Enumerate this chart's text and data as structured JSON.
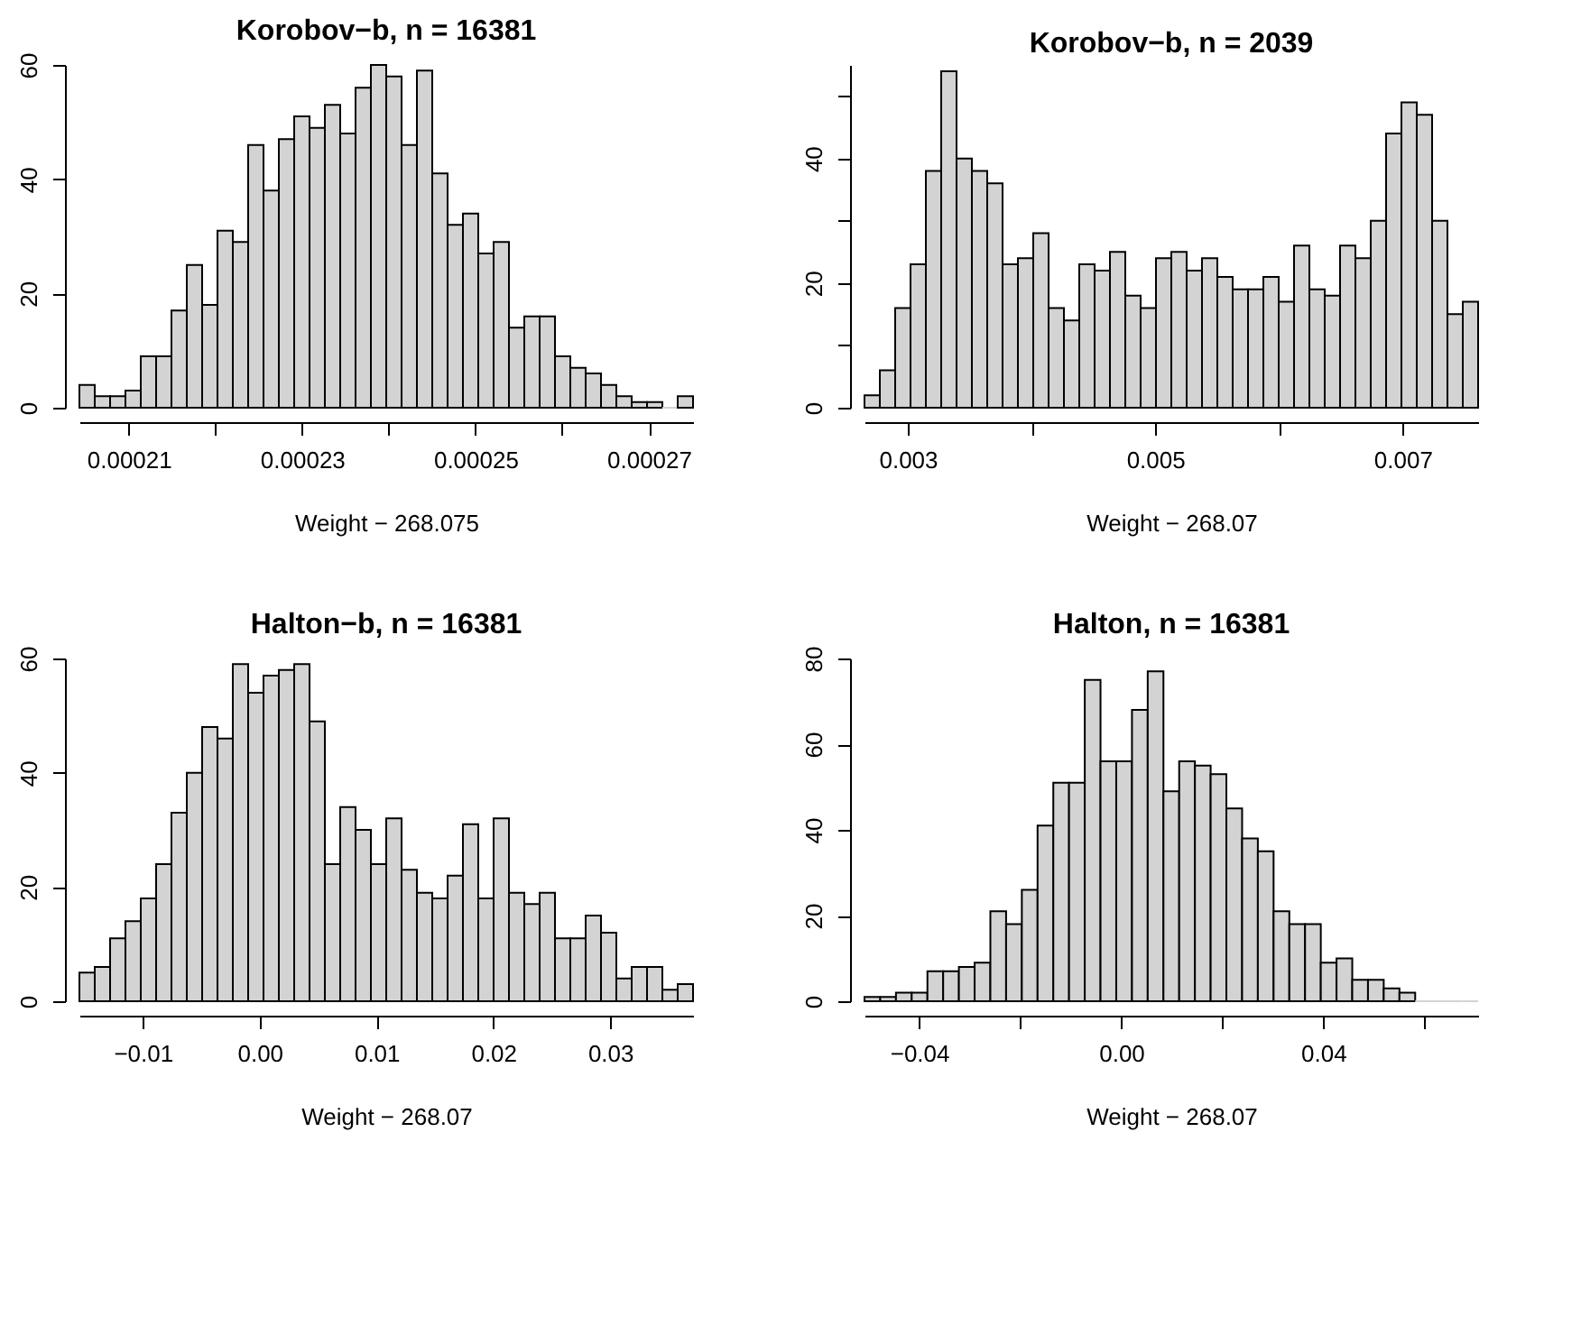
{
  "chart_data": [
    {
      "type": "histogram",
      "title": "Korobov−b, n =  16381",
      "xlabel": "Weight − 268.075",
      "color": "#d3d3d3",
      "grid": false,
      "bins": [
        0.0002043,
        0.00020607,
        0.00020784,
        0.00020961,
        0.00021138,
        0.00021315,
        0.00021492,
        0.00021669,
        0.00021846,
        0.00022023,
        0.000222,
        0.00022377,
        0.00022554,
        0.00022731,
        0.00022908,
        0.00023085,
        0.00023262,
        0.00023439,
        0.00023616,
        0.00023793,
        0.0002397,
        0.00024147,
        0.00024324,
        0.00024501,
        0.00024678,
        0.00024855,
        0.00025032,
        0.00025209,
        0.00025386,
        0.00025563,
        0.0002574,
        0.00025917,
        0.00026094,
        0.00026271,
        0.00026448,
        0.00026625,
        0.00026802,
        0.00026979,
        0.00027156,
        0.00027333,
        0.0002751
      ],
      "values": [
        4,
        2,
        2,
        3,
        9,
        9,
        17,
        25,
        18,
        31,
        29,
        46,
        38,
        47,
        51,
        49,
        53,
        48,
        56,
        60,
        58,
        46,
        59,
        41,
        32,
        34,
        27,
        29,
        14,
        16,
        16,
        9,
        7,
        6,
        4,
        2,
        1,
        1,
        0,
        2
      ],
      "xlim": [
        0.0002043,
        0.0002751
      ],
      "xticks": [
        0.00021,
        {
          "value": 0.00022,
          "label": null
        },
        0.00023,
        {
          "value": 0.00024,
          "label": null
        },
        0.00025,
        {
          "value": 0.00026,
          "label": null
        },
        0.00027
      ],
      "ylim": [
        0,
        60
      ],
      "yticks": [
        0,
        20,
        40,
        60
      ]
    },
    {
      "type": "histogram",
      "title": "Korobov−b, n =  2039",
      "xlabel": "Weight − 268.07",
      "color": "#d3d3d3",
      "grid": false,
      "bins": [
        0.00265,
        0.002774,
        0.002898,
        0.003022,
        0.003146,
        0.00327,
        0.003394,
        0.003518,
        0.003642,
        0.003766,
        0.00389,
        0.004014,
        0.004138,
        0.004262,
        0.004386,
        0.00451,
        0.004634,
        0.004758,
        0.004882,
        0.005006,
        0.00513,
        0.005254,
        0.005378,
        0.005502,
        0.005626,
        0.00575,
        0.005874,
        0.005998,
        0.006122,
        0.006246,
        0.00637,
        0.006494,
        0.006618,
        0.006742,
        0.006866,
        0.00699,
        0.007114,
        0.007238,
        0.007362,
        0.007486,
        0.00761
      ],
      "values": [
        2,
        6,
        16,
        23,
        38,
        54,
        40,
        38,
        36,
        23,
        24,
        28,
        16,
        14,
        23,
        22,
        25,
        18,
        16,
        24,
        25,
        22,
        24,
        21,
        19,
        19,
        21,
        17,
        26,
        19,
        18,
        26,
        24,
        30,
        44,
        49,
        47,
        30,
        15,
        17
      ],
      "xlim": [
        0.00265,
        0.00761
      ],
      "xticks": [
        0.003,
        {
          "value": 0.004,
          "label": null
        },
        0.005,
        {
          "value": 0.006,
          "label": null
        },
        0.007
      ],
      "ylim": [
        0,
        55
      ],
      "yticks": [
        0,
        {
          "value": 10,
          "label": null
        },
        20,
        {
          "value": 30,
          "label": null
        },
        40,
        {
          "value": 50,
          "label": null
        }
      ]
    },
    {
      "type": "histogram",
      "title": "Halton−b, n =  16381",
      "xlabel": "Weight − 268.07",
      "color": "#d3d3d3",
      "grid": false,
      "bins": [
        -0.01543,
        -0.014117,
        -0.012804,
        -0.011491,
        -0.010178,
        -0.008865,
        -0.007552,
        -0.006239,
        -0.004926,
        -0.003613,
        -0.0023,
        -0.000987,
        0.000326,
        0.001639,
        0.002952,
        0.004265,
        0.005578,
        0.006891,
        0.008204,
        0.009517,
        0.01083,
        0.012143,
        0.013456,
        0.014769,
        0.016082,
        0.017395,
        0.018708,
        0.020021,
        0.021334,
        0.022647,
        0.02396,
        0.025273,
        0.026586,
        0.027899,
        0.029212,
        0.030525,
        0.031838,
        0.033151,
        0.034464,
        0.035777,
        0.03709
      ],
      "values": [
        5,
        6,
        11,
        14,
        18,
        24,
        33,
        40,
        48,
        46,
        59,
        54,
        57,
        58,
        59,
        49,
        24,
        34,
        30,
        24,
        32,
        23,
        19,
        18,
        22,
        31,
        18,
        32,
        19,
        17,
        19,
        11,
        11,
        15,
        12,
        4,
        6,
        6,
        2,
        3
      ],
      "xlim": [
        -0.01543,
        0.03709
      ],
      "xticks": [
        {
          "value": -0.01,
          "label": "−0.01"
        },
        {
          "value": 0,
          "label": "0.00"
        },
        0.01,
        0.02,
        0.03
      ],
      "ylim": [
        0,
        60
      ],
      "yticks": [
        0,
        20,
        40,
        60
      ]
    },
    {
      "type": "histogram",
      "title": "Halton, n =  16381",
      "xlabel": "Weight − 268.07",
      "color": "#d3d3d3",
      "grid": false,
      "bins": [
        -0.05083,
        -0.047715,
        -0.0446,
        -0.041485,
        -0.03837,
        -0.035255,
        -0.03214,
        -0.029025,
        -0.02591,
        -0.022795,
        -0.01968,
        -0.016565,
        -0.01345,
        -0.010335,
        -0.00722,
        -0.004105,
        -0.00099,
        0.002125,
        0.00524,
        0.008355,
        0.01147,
        0.014585,
        0.0177,
        0.020815,
        0.02393,
        0.027045,
        0.03016,
        0.033275,
        0.03639,
        0.039505,
        0.04262,
        0.045735,
        0.04885,
        0.051965,
        0.05508,
        0.058195,
        0.06131,
        0.064425,
        0.06754,
        0.070655
      ],
      "values": [
        1,
        1,
        2,
        2,
        7,
        7,
        8,
        9,
        21,
        18,
        26,
        41,
        51,
        51,
        75,
        56,
        56,
        68,
        77,
        49,
        56,
        55,
        53,
        45,
        38,
        35,
        21,
        18,
        18,
        9,
        10,
        5,
        5,
        3,
        2,
        0,
        0,
        0,
        0
      ],
      "xlim": [
        -0.05083,
        0.070655
      ],
      "xticks": [
        {
          "value": -0.04,
          "label": "−0.04"
        },
        {
          "value": -0.02,
          "label": null
        },
        {
          "value": 0,
          "label": "0.00"
        },
        {
          "value": 0.02,
          "label": null
        },
        0.04,
        {
          "value": 0.06,
          "label": null
        }
      ],
      "ylim": [
        0,
        80
      ],
      "yticks": [
        0,
        20,
        40,
        60,
        80
      ]
    }
  ]
}
